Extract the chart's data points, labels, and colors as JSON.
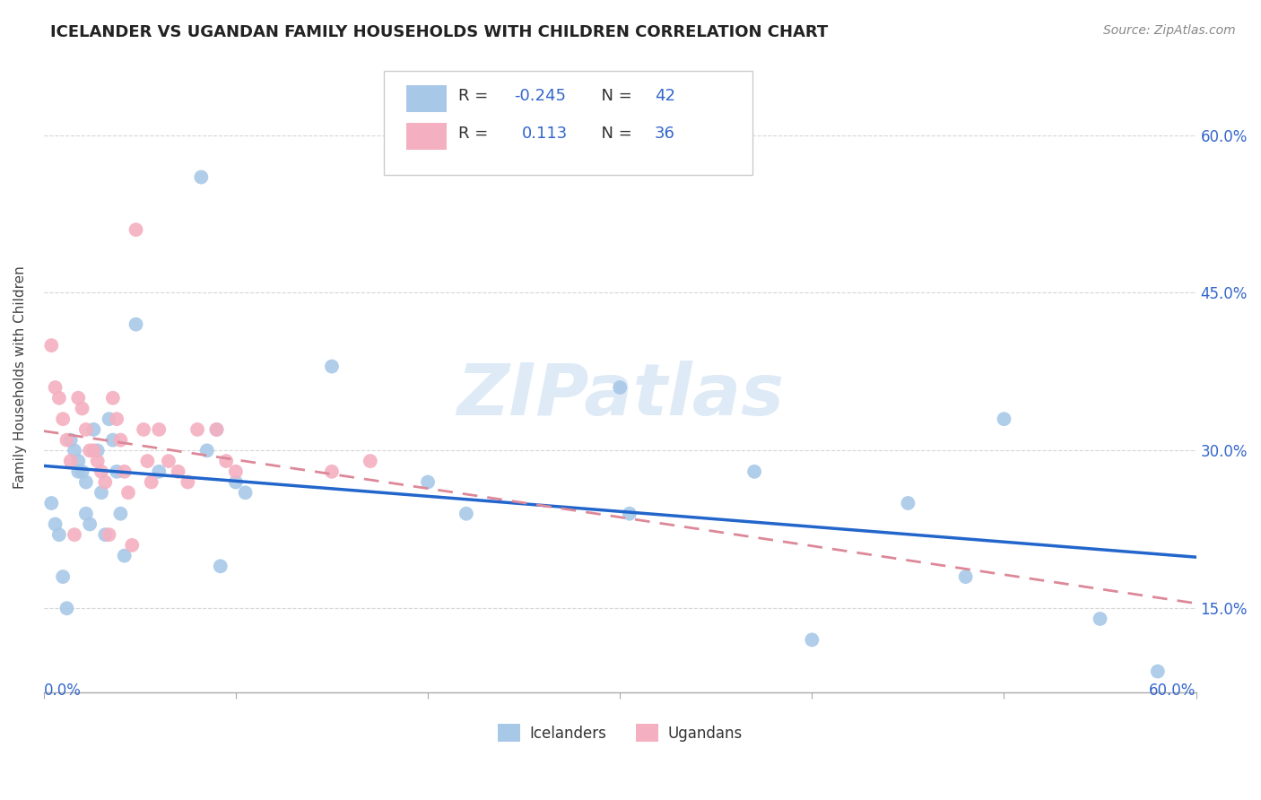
{
  "title": "ICELANDER VS UGANDAN FAMILY HOUSEHOLDS WITH CHILDREN CORRELATION CHART",
  "source": "Source: ZipAtlas.com",
  "ylabel": "Family Households with Children",
  "xlim": [
    0.0,
    0.6
  ],
  "ylim": [
    0.07,
    0.67
  ],
  "icelanders_R": "-0.245",
  "icelanders_N": "42",
  "ugandans_R": "0.113",
  "ugandans_N": "36",
  "icelander_color": "#a8c8e8",
  "ugandan_color": "#f4b0c0",
  "icelander_line_color": "#2266cc",
  "ugandan_line_color": "#dd8899",
  "legend_icelander_label": "Icelanders",
  "legend_ugandan_label": "Ugandans",
  "legend_text_color": "#3366cc",
  "icelanders_x": [
    0.004,
    0.006,
    0.008,
    0.01,
    0.012,
    0.014,
    0.016,
    0.018,
    0.018,
    0.02,
    0.022,
    0.022,
    0.024,
    0.026,
    0.028,
    0.03,
    0.032,
    0.034,
    0.036,
    0.038,
    0.04,
    0.042,
    0.048,
    0.06,
    0.082,
    0.085,
    0.09,
    0.092,
    0.1,
    0.105,
    0.15,
    0.2,
    0.22,
    0.3,
    0.305,
    0.37,
    0.4,
    0.45,
    0.48,
    0.5,
    0.55,
    0.58
  ],
  "icelanders_y": [
    0.25,
    0.23,
    0.22,
    0.18,
    0.15,
    0.31,
    0.3,
    0.29,
    0.28,
    0.28,
    0.27,
    0.24,
    0.23,
    0.32,
    0.3,
    0.26,
    0.22,
    0.33,
    0.31,
    0.28,
    0.24,
    0.2,
    0.42,
    0.28,
    0.56,
    0.3,
    0.32,
    0.19,
    0.27,
    0.26,
    0.38,
    0.27,
    0.24,
    0.36,
    0.24,
    0.28,
    0.12,
    0.25,
    0.18,
    0.33,
    0.14,
    0.09
  ],
  "ugandans_x": [
    0.004,
    0.006,
    0.008,
    0.01,
    0.012,
    0.014,
    0.016,
    0.018,
    0.02,
    0.022,
    0.024,
    0.026,
    0.028,
    0.03,
    0.032,
    0.034,
    0.036,
    0.038,
    0.04,
    0.042,
    0.044,
    0.046,
    0.048,
    0.052,
    0.054,
    0.056,
    0.06,
    0.065,
    0.07,
    0.075,
    0.08,
    0.09,
    0.095,
    0.1,
    0.15,
    0.17
  ],
  "ugandans_y": [
    0.4,
    0.36,
    0.35,
    0.33,
    0.31,
    0.29,
    0.22,
    0.35,
    0.34,
    0.32,
    0.3,
    0.3,
    0.29,
    0.28,
    0.27,
    0.22,
    0.35,
    0.33,
    0.31,
    0.28,
    0.26,
    0.21,
    0.51,
    0.32,
    0.29,
    0.27,
    0.32,
    0.29,
    0.28,
    0.27,
    0.32,
    0.32,
    0.29,
    0.28,
    0.28,
    0.29
  ],
  "background_color": "#ffffff",
  "grid_color": "#cccccc",
  "watermark_text": "ZIPatlas",
  "watermark_color": "#c8ddf0",
  "axis_label_color": "#3366cc",
  "tick_color": "#666666"
}
